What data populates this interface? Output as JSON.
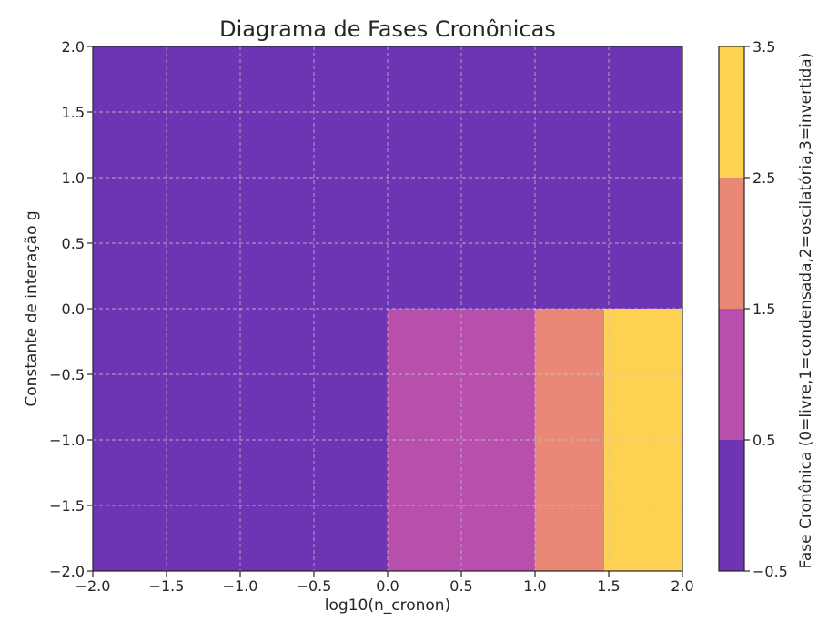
{
  "chart_data": {
    "type": "heatmap",
    "title": "Diagrama de Fases Cronônicas",
    "xlabel": "log10(n_cronon)",
    "ylabel": "Constante de interação g",
    "xlim": [
      -2.0,
      2.0
    ],
    "ylim": [
      -2.0,
      2.0
    ],
    "xticks": [
      "−2.0",
      "−1.5",
      "−1.0",
      "−0.5",
      "0.0",
      "0.5",
      "1.0",
      "1.5",
      "2.0"
    ],
    "yticks": [
      "−2.0",
      "−1.5",
      "−1.0",
      "−0.5",
      "0.0",
      "0.5",
      "1.0",
      "1.5",
      "2.0"
    ],
    "grid": true,
    "regions": [
      {
        "x": [
          -2.0,
          2.0
        ],
        "y": [
          0.0,
          2.0
        ],
        "phase": 0
      },
      {
        "x": [
          -2.0,
          0.0
        ],
        "y": [
          -2.0,
          0.0
        ],
        "phase": 0
      },
      {
        "x": [
          0.0,
          1.0
        ],
        "y": [
          -2.0,
          0.0
        ],
        "phase": 1
      },
      {
        "x": [
          1.0,
          1.47
        ],
        "y": [
          -2.0,
          0.0
        ],
        "phase": 2
      },
      {
        "x": [
          1.47,
          2.0
        ],
        "y": [
          -2.0,
          0.0
        ],
        "phase": 3
      }
    ],
    "colorbar": {
      "label": "Fase Cronônica (0=livre,1=condensada,2=oscilatória,3=invertida)",
      "range": [
        -0.5,
        3.5
      ],
      "ticks": [
        "−0.5",
        "0.5",
        "1.5",
        "2.5",
        "3.5"
      ],
      "colors": [
        "#6f34b4",
        "#b94fac",
        "#ea8878",
        "#fdd152"
      ]
    }
  }
}
